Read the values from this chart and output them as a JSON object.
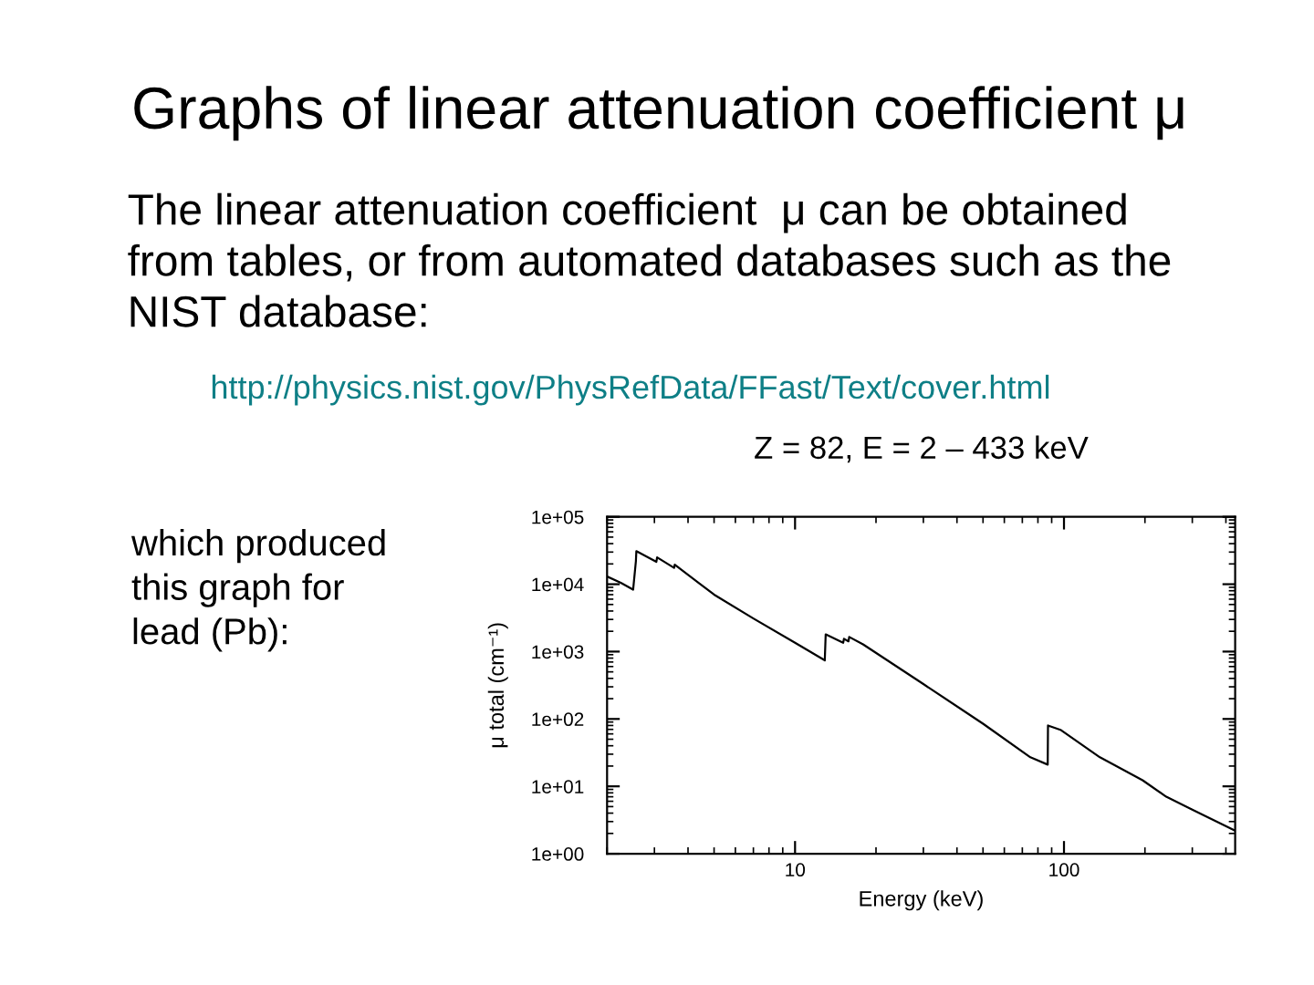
{
  "chart_data": {
    "type": "line",
    "title": "Graphs of linear attenuation coefficient μ",
    "subtitle": "Z = 82, E = 2 – 433 keV",
    "annotations": [
      "The linear attenuation coefficient  μ can be obtained\nfrom tables, or from automated databases such as the\nNIST database:",
      "http://physics.nist.gov/PhysRefData/FFast/Text/cover.html",
      "which produced\nthis graph for\nlead (Pb):"
    ],
    "xlabel": "Energy (keV)",
    "ylabel": "μ total (cm⁻¹)",
    "log": "xy",
    "line_style": "solid",
    "xlim": [
      2,
      433
    ],
    "xticks": [
      10,
      100
    ],
    "ylim": [
      1,
      100000
    ],
    "yticks": [
      {
        "value": 1,
        "label": "1e+00"
      },
      {
        "value": 10,
        "label": "1e+01"
      },
      {
        "value": 100,
        "label": "1e+02"
      },
      {
        "value": 1000,
        "label": "1e+03"
      },
      {
        "value": 10000,
        "label": "1e+04"
      },
      {
        "value": 100000,
        "label": "1e+05"
      }
    ],
    "series": [
      {
        "color": "#000000",
        "x": [
          2.0,
          2.25,
          2.5,
          2.56,
          2.57,
          3.05,
          3.07,
          3.55,
          3.57,
          5,
          7,
          10,
          12.9,
          13.0,
          15.1,
          15.2,
          15.8,
          15.9,
          17.9,
          30,
          50,
          75,
          87,
          87.2,
          97,
          136,
          196,
          240,
          300,
          433
        ],
        "values": [
          13000,
          10500,
          8300,
          22000,
          31000,
          21500,
          25000,
          17500,
          19500,
          7000,
          3100,
          1350,
          740,
          1800,
          1350,
          1550,
          1420,
          1650,
          1280,
          330,
          85,
          27,
          21,
          80,
          69,
          27,
          12.3,
          7.0,
          4.5,
          2.2
        ]
      }
    ]
  }
}
